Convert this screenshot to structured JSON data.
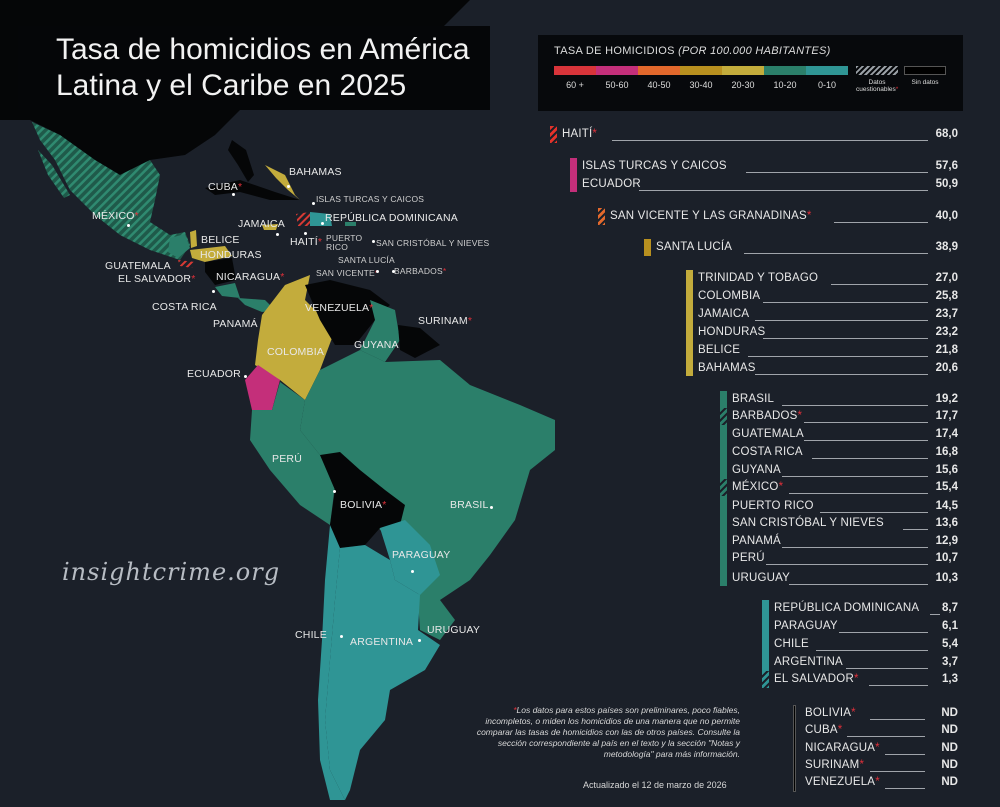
{
  "title_line1": "Tasa de homicidios en América",
  "title_line2": "Latina y el Caribe en 2025",
  "legend": {
    "title": "TASA DE HOMICIDIOS",
    "subtitle": "(POR 100.000 HABITANTES)",
    "items": [
      {
        "label": "60 +",
        "color": "#d8343a"
      },
      {
        "label": "50-60",
        "color": "#c42f7a"
      },
      {
        "label": "40-50",
        "color": "#e2682c"
      },
      {
        "label": "30-40",
        "color": "#b8901f"
      },
      {
        "label": "20-30",
        "color": "#c3ac3c"
      },
      {
        "label": "10-20",
        "color": "#2b7f6a"
      },
      {
        "label": "0-10",
        "color": "#2f9595"
      },
      {
        "label": "Datos cuestionables",
        "color": "hatch"
      },
      {
        "label": "Sin datos",
        "color": "#000000"
      }
    ]
  },
  "ranking": [
    {
      "name": "HAITÍ",
      "value": "68,0",
      "star": true,
      "color": "hatch-red"
    },
    {
      "name": "ISLAS TURCAS Y CAICOS",
      "value": "57,6",
      "star": false,
      "color": "#c42f7a"
    },
    {
      "name": "ECUADOR",
      "value": "50,9",
      "star": false,
      "color": "#c42f7a"
    },
    {
      "name": "SAN VICENTE Y LAS GRANADINAS",
      "value": "40,0",
      "star": true,
      "color": "hatch-orange"
    },
    {
      "name": "SANTA LUCÍA",
      "value": "38,9",
      "star": false,
      "color": "#b8901f"
    },
    {
      "name": "TRINIDAD Y TOBAGO",
      "value": "27,0",
      "star": false,
      "color": "#c3ac3c"
    },
    {
      "name": "COLOMBIA",
      "value": "25,8",
      "star": false,
      "color": "#c3ac3c"
    },
    {
      "name": "JAMAICA",
      "value": "23,7",
      "star": false,
      "color": "#c3ac3c"
    },
    {
      "name": "HONDURAS",
      "value": "23,2",
      "star": false,
      "color": "#c3ac3c"
    },
    {
      "name": "BELICE",
      "value": "21,8",
      "star": false,
      "color": "#c3ac3c"
    },
    {
      "name": "BAHAMAS",
      "value": "20,6",
      "star": false,
      "color": "#c3ac3c"
    },
    {
      "name": "BRASIL",
      "value": "19,2",
      "star": false,
      "color": "#2b7f6a"
    },
    {
      "name": "BARBADOS",
      "value": "17,7",
      "star": true,
      "color": "hatch-green"
    },
    {
      "name": "GUATEMALA",
      "value": "17,4",
      "star": false,
      "color": "#2b7f6a"
    },
    {
      "name": "COSTA RICA",
      "value": "16,8",
      "star": false,
      "color": "#2b7f6a"
    },
    {
      "name": "GUYANA",
      "value": "15,6",
      "star": false,
      "color": "#2b7f6a"
    },
    {
      "name": "MÉXICO",
      "value": "15,4",
      "star": true,
      "color": "hatch-green"
    },
    {
      "name": "PUERTO RICO",
      "value": "14,5",
      "star": false,
      "color": "#2b7f6a"
    },
    {
      "name": "SAN CRISTÓBAL Y NIEVES",
      "value": "13,6",
      "star": false,
      "color": "#2b7f6a"
    },
    {
      "name": "PANAMÁ",
      "value": "12,9",
      "star": false,
      "color": "#2b7f6a"
    },
    {
      "name": "PERÚ",
      "value": "10,7",
      "star": false,
      "color": "#2b7f6a"
    },
    {
      "name": "URUGUAY",
      "value": "10,3",
      "star": false,
      "color": "#2b7f6a"
    },
    {
      "name": "REPÚBLICA DOMINICANA",
      "value": "8,7",
      "star": false,
      "color": "#2f9595"
    },
    {
      "name": "PARAGUAY",
      "value": "6,1",
      "star": false,
      "color": "#2f9595"
    },
    {
      "name": "CHILE",
      "value": "5,4",
      "star": false,
      "color": "#2f9595"
    },
    {
      "name": "ARGENTINA",
      "value": "3,7",
      "star": false,
      "color": "#2f9595"
    },
    {
      "name": "EL SALVADOR",
      "value": "1,3",
      "star": true,
      "color": "hatch-teal"
    },
    {
      "name": "BOLIVIA",
      "value": "ND",
      "star": true,
      "color": "#000000"
    },
    {
      "name": "CUBA",
      "value": "ND",
      "star": true,
      "color": "#000000"
    },
    {
      "name": "NICARAGUA",
      "value": "ND",
      "star": true,
      "color": "#000000"
    },
    {
      "name": "SURINAM",
      "value": "ND",
      "star": true,
      "color": "#000000"
    },
    {
      "name": "VENEZUELA",
      "value": "ND",
      "star": true,
      "color": "#000000"
    }
  ],
  "map_labels": [
    {
      "text": "MÉXICO",
      "star": true
    },
    {
      "text": "CUBA",
      "star": true
    },
    {
      "text": "BAHAMAS",
      "star": false
    },
    {
      "text": "ISLAS TURCAS Y CAICOS",
      "star": false
    },
    {
      "text": "REPÚBLICA DOMINICANA",
      "star": false
    },
    {
      "text": "JAMAICA",
      "star": false
    },
    {
      "text": "HAITÍ",
      "star": true
    },
    {
      "text": "PUERTO RICO",
      "star": false
    },
    {
      "text": "SAN CRISTÓBAL Y NIEVES",
      "star": false
    },
    {
      "text": "SANTA LUCÍA",
      "star": false
    },
    {
      "text": "SAN VICENTE",
      "star": true
    },
    {
      "text": "BARBADOS",
      "star": true
    },
    {
      "text": "BELICE",
      "star": false
    },
    {
      "text": "HONDURAS",
      "star": false
    },
    {
      "text": "GUATEMALA",
      "star": false
    },
    {
      "text": "EL SALVADOR",
      "star": true
    },
    {
      "text": "NICARAGUA",
      "star": true
    },
    {
      "text": "COSTA RICA",
      "star": false
    },
    {
      "text": "PANAMÁ",
      "star": false
    },
    {
      "text": "VENEZUELA",
      "star": true
    },
    {
      "text": "SURINAM",
      "star": true
    },
    {
      "text": "GUYANA",
      "star": false
    },
    {
      "text": "COLOMBIA",
      "star": false
    },
    {
      "text": "ECUADOR",
      "star": false
    },
    {
      "text": "PERÚ",
      "star": false
    },
    {
      "text": "BOLIVIA",
      "star": true
    },
    {
      "text": "BRASIL",
      "star": false
    },
    {
      "text": "PARAGUAY",
      "star": false
    },
    {
      "text": "CHILE",
      "star": false
    },
    {
      "text": "ARGENTINA",
      "star": false
    },
    {
      "text": "URUGUAY",
      "star": false
    }
  ],
  "watermark": "insightcrime.org",
  "note": "Los datos para estos países son preliminares, poco fiables, incompletos, o miden los homicidios de una manera que no permite comparar las tasas de homicidios con las de otros países. Consulte la sección correspondiente al país en el texto y la sección \"Notas y metodología\" para más información.",
  "updated": "Actualizado el 12 de marzo de 2026"
}
